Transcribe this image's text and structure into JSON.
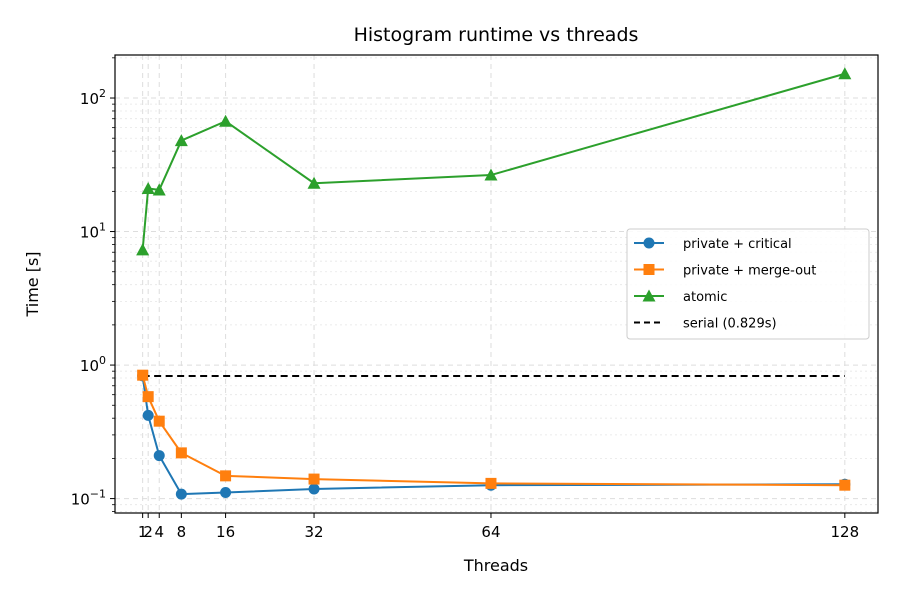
{
  "chart_data": {
    "type": "line",
    "title": "Histogram runtime vs threads",
    "xlabel": "Threads",
    "ylabel": "Time [s]",
    "x": [
      1,
      2,
      4,
      8,
      16,
      32,
      64,
      128
    ],
    "x_ticks": [
      "1",
      "2",
      "4",
      "8",
      "16",
      "32",
      "64",
      "128"
    ],
    "xlim": [
      -4,
      134
    ],
    "ylim": [
      0.078,
      210
    ],
    "y_scale": "log",
    "y_ticks": [
      {
        "value": 0.1,
        "base": "10",
        "exp": "−1"
      },
      {
        "value": 1,
        "base": "10",
        "exp": "0"
      },
      {
        "value": 10,
        "base": "10",
        "exp": "1"
      },
      {
        "value": 100,
        "base": "10",
        "exp": "2"
      }
    ],
    "grid": true,
    "legend_position": "center-right",
    "series": [
      {
        "name": "private + critical",
        "color": "#1f77b4",
        "marker": "circle",
        "values": [
          0.83,
          0.42,
          0.21,
          0.108,
          0.111,
          0.118,
          0.126,
          0.128
        ]
      },
      {
        "name": "private + merge-out",
        "color": "#ff7f0e",
        "marker": "square",
        "values": [
          0.84,
          0.58,
          0.38,
          0.22,
          0.148,
          0.14,
          0.13,
          0.126
        ]
      },
      {
        "name": "atomic",
        "color": "#2ca02c",
        "marker": "triangle",
        "values": [
          7.3,
          21,
          20.5,
          48,
          67,
          23,
          26.5,
          152
        ]
      }
    ],
    "reference_line": {
      "name": "serial (0.829s)",
      "value": 0.829,
      "color": "#000000",
      "style": "dashed"
    }
  }
}
